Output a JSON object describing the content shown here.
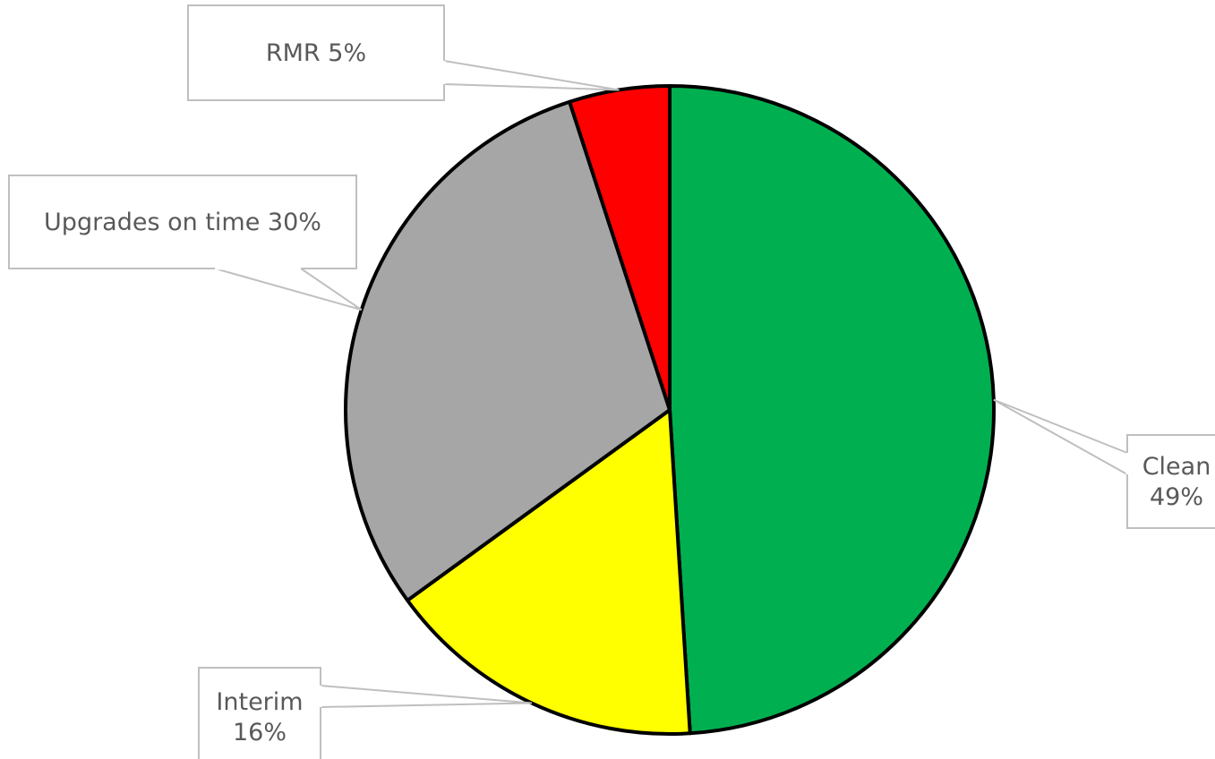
{
  "chart_data": {
    "type": "pie",
    "categories": [
      "Clean",
      "Interim",
      "Upgrades on time",
      "RMR"
    ],
    "values": [
      49,
      16,
      30,
      5
    ],
    "slices": [
      {
        "name": "Clean",
        "value": 49,
        "color": "#00b050",
        "label_lines": [
          "Clean",
          "49%"
        ]
      },
      {
        "name": "Interim",
        "value": 16,
        "color": "#ffff00",
        "label_lines": [
          "Interim",
          "16%"
        ]
      },
      {
        "name": "Upgrades on time",
        "value": 30,
        "color": "#a6a6a6",
        "label_lines": [
          "Upgrades on time 30%"
        ]
      },
      {
        "name": "RMR",
        "value": 5,
        "color": "#ff0000",
        "label_lines": [
          "RMR 5%"
        ]
      }
    ],
    "value_unit": "%",
    "title": "",
    "legend": false,
    "label_style": "callout"
  }
}
